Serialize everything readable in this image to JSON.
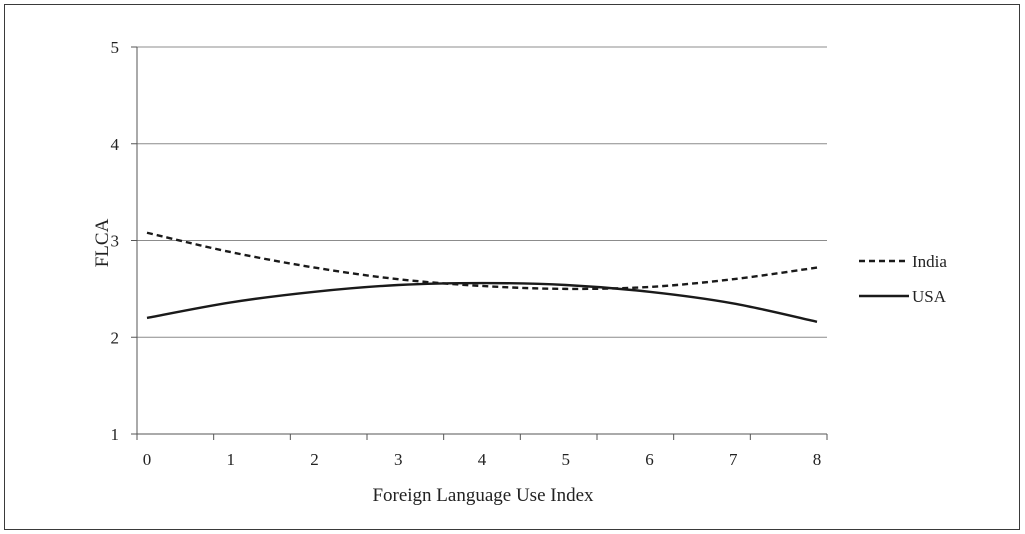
{
  "chart_data": {
    "type": "line",
    "xlabel": "Foreign Language Use Index",
    "ylabel": "FLCA",
    "xlim": [
      0,
      8
    ],
    "ylim": [
      1,
      5
    ],
    "x_ticks": [
      "0",
      "1",
      "2",
      "3",
      "4",
      "5",
      "6",
      "7",
      "8"
    ],
    "y_ticks": [
      "1",
      "2",
      "3",
      "4",
      "5"
    ],
    "grid": "horizontal",
    "legend_position": "right",
    "series": [
      {
        "name": "India",
        "style": "dashed",
        "color": "#1a1a1a",
        "x": [
          0,
          1,
          2,
          3,
          4,
          5,
          6,
          7,
          8
        ],
        "y": [
          3.08,
          2.88,
          2.72,
          2.6,
          2.53,
          2.5,
          2.52,
          2.6,
          2.72
        ]
      },
      {
        "name": "USA",
        "style": "solid",
        "color": "#1a1a1a",
        "x": [
          0,
          1,
          2,
          3,
          4,
          5,
          6,
          7,
          8
        ],
        "y": [
          2.2,
          2.36,
          2.47,
          2.54,
          2.56,
          2.54,
          2.47,
          2.35,
          2.16
        ]
      }
    ]
  }
}
